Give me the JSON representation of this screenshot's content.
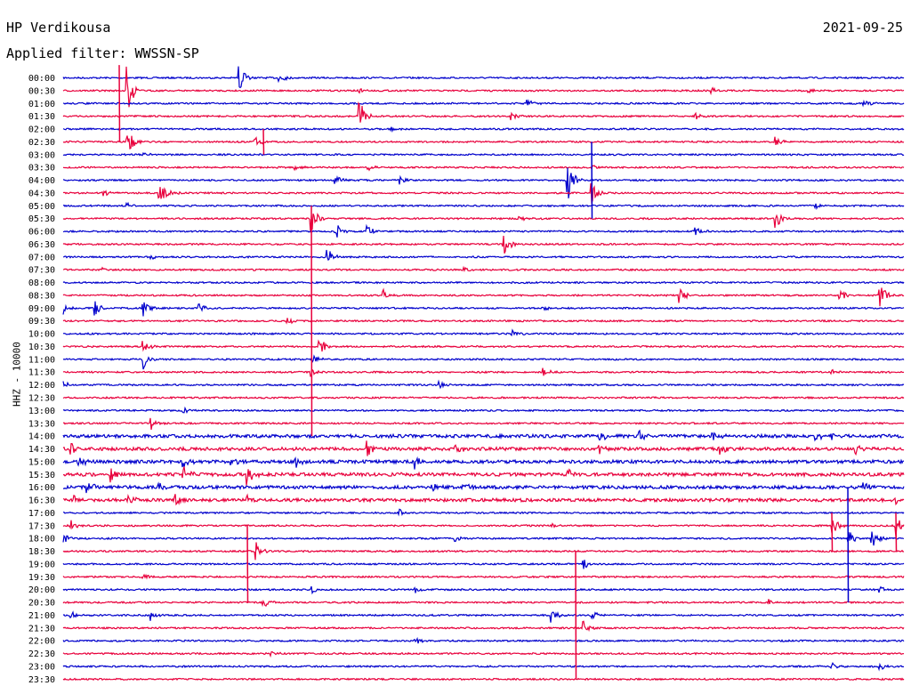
{
  "header": {
    "station": "HP Verdikousa",
    "date": "2021-09-25",
    "filter_label": "Applied filter: WWSSN-SP"
  },
  "channel_label": "HHZ - 10000",
  "chart_data": {
    "type": "line",
    "title": "HP Verdikousa",
    "subtitle": "Applied filter: WWSSN-SP",
    "ylabel": "HHZ - 10000",
    "row_labels": [
      "00:00",
      "00:30",
      "01:00",
      "01:30",
      "02:00",
      "02:30",
      "03:00",
      "03:30",
      "04:00",
      "04:30",
      "05:00",
      "05:30",
      "06:00",
      "06:30",
      "07:00",
      "07:30",
      "08:00",
      "08:30",
      "09:00",
      "09:30",
      "10:00",
      "10:30",
      "11:00",
      "11:30",
      "12:00",
      "12:30",
      "13:00",
      "13:30",
      "14:00",
      "14:30",
      "15:00",
      "15:30",
      "16:00",
      "16:30",
      "17:00",
      "17:30",
      "18:00",
      "18:30",
      "19:00",
      "19:30",
      "20:00",
      "20:30",
      "21:00",
      "21:30",
      "22:00",
      "22:30",
      "23:00",
      "23:30"
    ],
    "trace_colors": [
      "#0000cc",
      "#e8003c"
    ],
    "events_minute_amplitude": [
      [
        [
          22,
          3
        ],
        [
          27,
          1
        ]
      ],
      [
        [
          8,
          6
        ],
        [
          37,
          0.6
        ],
        [
          81,
          1
        ],
        [
          93,
          0.6
        ]
      ],
      [
        [
          58,
          1
        ],
        [
          100,
          1
        ]
      ],
      [
        [
          37,
          4
        ],
        [
          56,
          1
        ],
        [
          79,
          1
        ]
      ],
      [
        [
          41,
          1.2
        ]
      ],
      [
        [
          8,
          4
        ],
        [
          24,
          1.5
        ],
        [
          89,
          1.2
        ]
      ],
      [
        [
          10,
          0.5
        ]
      ],
      [
        [
          29,
          0.6
        ],
        [
          38,
          0.8
        ],
        [
          66,
          0.6
        ]
      ],
      [
        [
          34,
          1.3
        ],
        [
          42,
          1
        ],
        [
          63,
          5
        ]
      ],
      [
        [
          5,
          1
        ],
        [
          12,
          2,
          1.2
        ],
        [
          66,
          3
        ]
      ],
      [
        [
          8,
          0.6
        ],
        [
          94,
          0.6
        ]
      ],
      [
        [
          31,
          3.5
        ],
        [
          57,
          0.6
        ],
        [
          89,
          2.5
        ]
      ],
      [
        [
          34,
          2.5
        ],
        [
          38,
          1.5
        ],
        [
          79,
          1
        ]
      ],
      [
        [
          55,
          3
        ]
      ],
      [
        [
          33,
          2
        ],
        [
          11,
          0.5
        ]
      ],
      [
        [
          50,
          0.5
        ],
        [
          5,
          0.5
        ]
      ],
      [],
      [
        [
          40,
          1.2
        ],
        [
          77,
          2
        ],
        [
          97,
          1.5
        ],
        [
          102,
          3
        ]
      ],
      [
        [
          0,
          1.5
        ],
        [
          4,
          2
        ],
        [
          10,
          2
        ],
        [
          17,
          1.5
        ],
        [
          60,
          0.6
        ]
      ],
      [
        [
          28,
          1.2
        ]
      ],
      [
        [
          56,
          1
        ]
      ],
      [
        [
          10,
          1.5
        ],
        [
          32,
          3
        ]
      ],
      [
        [
          10,
          2.5
        ],
        [
          31,
          1.5
        ]
      ],
      [
        [
          31,
          1
        ],
        [
          60,
          1
        ],
        [
          96,
          1
        ]
      ],
      [
        [
          0,
          1
        ],
        [
          47,
          0.8
        ]
      ],
      [],
      [
        [
          15,
          0.8
        ]
      ],
      [
        [
          11,
          2
        ]
      ],
      [
        [
          67,
          1.5
        ],
        [
          72,
          1.5
        ],
        [
          81,
          1.5
        ],
        [
          94,
          1.2
        ],
        [
          96,
          1
        ]
      ],
      [
        [
          1,
          1.5
        ],
        [
          38,
          2
        ],
        [
          49,
          1.5
        ],
        [
          67,
          1.5
        ],
        [
          82,
          1.2
        ],
        [
          99,
          1
        ]
      ],
      [
        [
          2,
          1.5
        ],
        [
          15,
          1.5
        ],
        [
          21,
          1.5
        ],
        [
          29,
          1.5
        ],
        [
          44,
          1.5
        ]
      ],
      [
        [
          6,
          2
        ],
        [
          15,
          2
        ],
        [
          23,
          2.5
        ],
        [
          42,
          1.2
        ],
        [
          63,
          1.2
        ]
      ],
      [
        [
          3,
          1.5
        ],
        [
          12,
          1.5
        ],
        [
          46,
          1.5
        ],
        [
          50,
          1.5
        ],
        [
          100,
          1.2
        ]
      ],
      [
        [
          1,
          1.5
        ],
        [
          8,
          1.5
        ],
        [
          14,
          1.2
        ],
        [
          23,
          1
        ],
        [
          104,
          1.2
        ]
      ],
      [
        [
          42,
          1
        ]
      ],
      [
        [
          1,
          1.5
        ],
        [
          61,
          0.8
        ],
        [
          96,
          3
        ],
        [
          104,
          3
        ]
      ],
      [
        [
          0,
          1.5
        ],
        [
          49,
          1
        ],
        [
          98,
          2.5
        ],
        [
          101,
          3
        ]
      ],
      [
        [
          24,
          3
        ]
      ],
      [
        [
          65,
          1.5
        ]
      ],
      [
        [
          10,
          1
        ]
      ],
      [
        [
          31,
          1
        ],
        [
          44,
          0.8
        ],
        [
          102,
          0.8
        ]
      ],
      [
        [
          25,
          1.5
        ],
        [
          88,
          0.8
        ]
      ],
      [
        [
          1,
          1
        ],
        [
          11,
          1.2
        ],
        [
          61,
          2
        ],
        [
          66,
          1.5
        ]
      ],
      [
        [
          65,
          1.5
        ]
      ],
      [
        [
          44,
          0.8
        ]
      ],
      [
        [
          26,
          0.6
        ]
      ],
      [
        [
          96,
          0.8
        ],
        [
          102,
          1
        ]
      ],
      []
    ],
    "long_events": [
      {
        "row": 1,
        "minute": 7,
        "up_rows": 2,
        "down_rows": 4
      },
      {
        "row": 5,
        "minute": 25,
        "up_rows": 1,
        "down_rows": 1
      },
      {
        "row": 11,
        "minute": 31,
        "up_rows": 1,
        "down_rows": 17
      },
      {
        "row": 35,
        "minute": 96,
        "up_rows": 1,
        "down_rows": 2
      },
      {
        "row": 35,
        "minute": 104,
        "up_rows": 1,
        "down_rows": 2
      },
      {
        "row": 36,
        "minute": 98,
        "up_rows": 4,
        "down_rows": 5
      },
      {
        "row": 37,
        "minute": 23,
        "up_rows": 2,
        "down_rows": 4
      },
      {
        "row": 41,
        "minute": 64,
        "up_rows": 4,
        "down_rows": 6
      },
      {
        "row": 8,
        "minute": 66,
        "up_rows": 3,
        "down_rows": 3
      }
    ]
  }
}
